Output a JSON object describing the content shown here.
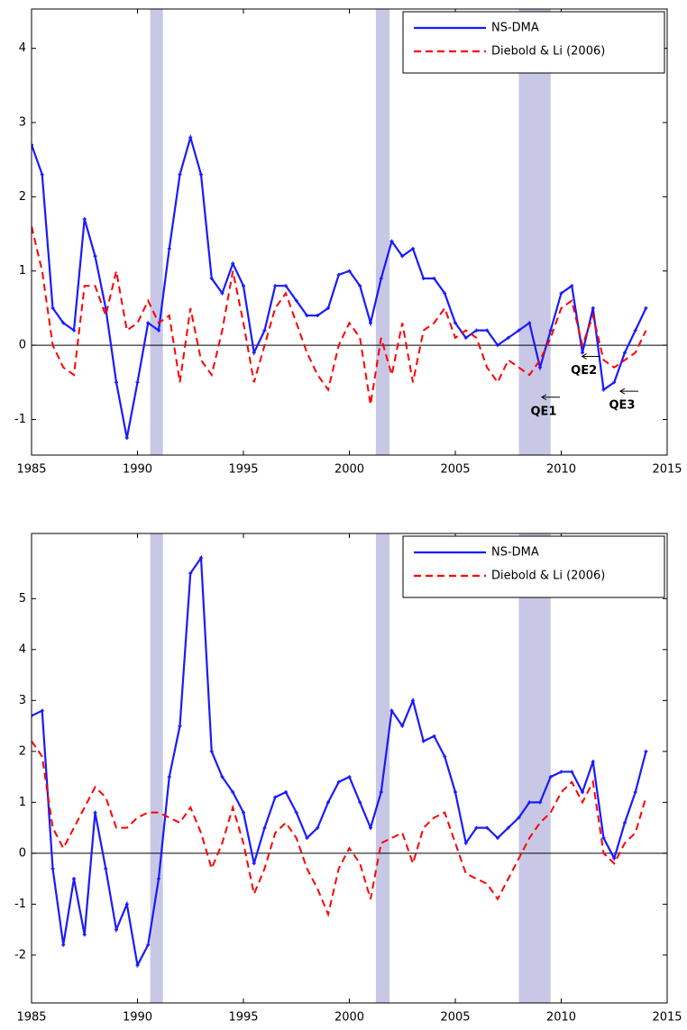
{
  "chart_data": [
    {
      "type": "line",
      "xlim": [
        1985,
        2015
      ],
      "xticks": [
        1985,
        1990,
        1995,
        2000,
        2005,
        2010,
        2015
      ],
      "ylim": [
        -1.48,
        4.53
      ],
      "yticks": [
        -1,
        0,
        1,
        2,
        3,
        4
      ],
      "legend": "northeast",
      "zero_line": true,
      "shaded_periods": [
        [
          1990.6,
          1991.2
        ],
        [
          2001.25,
          2001.9
        ],
        [
          2008.0,
          2009.5
        ]
      ],
      "shade_color": "#c8c8e6",
      "x": [
        1985.0,
        1985.5,
        1986.0,
        1986.5,
        1987.0,
        1987.5,
        1988.0,
        1988.5,
        1989.0,
        1989.5,
        1990.0,
        1990.5,
        1991.0,
        1991.5,
        1992.0,
        1992.5,
        1993.0,
        1993.5,
        1994.0,
        1994.5,
        1995.0,
        1995.5,
        1996.0,
        1996.5,
        1997.0,
        1997.5,
        1998.0,
        1998.5,
        1999.0,
        1999.5,
        2000.0,
        2000.5,
        2001.0,
        2001.5,
        2002.0,
        2002.5,
        2003.0,
        2003.5,
        2004.0,
        2004.5,
        2005.0,
        2005.5,
        2006.0,
        2006.5,
        2007.0,
        2007.5,
        2008.0,
        2008.5,
        2009.0,
        2009.5,
        2010.0,
        2010.5,
        2011.0,
        2011.5,
        2012.0,
        2012.5,
        2013.0,
        2013.5,
        2014.0
      ],
      "series": [
        {
          "name": "NS-DMA",
          "color": "#1a1aff",
          "style": "solid",
          "values": [
            2.7,
            2.3,
            0.5,
            0.3,
            0.2,
            1.7,
            1.2,
            0.5,
            -0.5,
            -1.25,
            -0.5,
            0.3,
            0.2,
            1.3,
            2.3,
            2.8,
            2.3,
            0.9,
            0.7,
            1.1,
            0.8,
            -0.1,
            0.2,
            0.8,
            0.8,
            0.6,
            0.4,
            0.4,
            0.5,
            0.95,
            1.0,
            0.8,
            0.3,
            0.9,
            1.4,
            1.2,
            1.3,
            0.9,
            0.9,
            0.7,
            0.3,
            0.1,
            0.2,
            0.2,
            0.0,
            0.1,
            0.2,
            0.3,
            -0.3,
            0.2,
            0.7,
            0.8,
            -0.1,
            0.5,
            -0.6,
            -0.5,
            -0.1,
            0.2,
            0.5
          ]
        },
        {
          "name": "Diebold & Li (2006)",
          "color": "#ff0000",
          "style": "dashed",
          "values": [
            1.6,
            1.0,
            0.0,
            -0.3,
            -0.4,
            0.8,
            0.8,
            0.4,
            1.0,
            0.2,
            0.3,
            0.6,
            0.3,
            0.4,
            -0.5,
            0.5,
            -0.2,
            -0.4,
            0.2,
            1.0,
            0.3,
            -0.5,
            0.0,
            0.5,
            0.7,
            0.3,
            -0.1,
            -0.4,
            -0.6,
            0.0,
            0.3,
            0.1,
            -0.8,
            0.1,
            -0.4,
            0.3,
            -0.5,
            0.2,
            0.3,
            0.5,
            0.1,
            0.2,
            0.1,
            -0.3,
            -0.5,
            -0.2,
            -0.3,
            -0.4,
            -0.2,
            0.1,
            0.5,
            0.6,
            0.0,
            0.4,
            -0.2,
            -0.3,
            -0.2,
            -0.1,
            0.2
          ]
        }
      ],
      "annotations": [
        {
          "text": "QE1",
          "x": 2009.0,
          "y": -0.7
        },
        {
          "text": "QE2",
          "x": 2010.9,
          "y": -0.15
        },
        {
          "text": "QE3",
          "x": 2012.7,
          "y": -0.62
        }
      ]
    },
    {
      "type": "line",
      "xlim": [
        1985,
        2015
      ],
      "xticks": [
        1985,
        1990,
        1995,
        2000,
        2005,
        2010,
        2015
      ],
      "ylim": [
        -2.94,
        6.28
      ],
      "yticks": [
        -2,
        -1,
        0,
        1,
        2,
        3,
        4,
        5
      ],
      "legend": "northeast",
      "zero_line": true,
      "shaded_periods": [
        [
          1990.6,
          1991.2
        ],
        [
          2001.25,
          2001.9
        ],
        [
          2008.0,
          2009.5
        ]
      ],
      "shade_color": "#c8c8e6",
      "x": [
        1985.0,
        1985.5,
        1986.0,
        1986.5,
        1987.0,
        1987.5,
        1988.0,
        1988.5,
        1989.0,
        1989.5,
        1990.0,
        1990.5,
        1991.0,
        1991.5,
        1992.0,
        1992.5,
        1993.0,
        1993.5,
        1994.0,
        1994.5,
        1995.0,
        1995.5,
        1996.0,
        1996.5,
        1997.0,
        1997.5,
        1998.0,
        1998.5,
        1999.0,
        1999.5,
        2000.0,
        2000.5,
        2001.0,
        2001.5,
        2002.0,
        2002.5,
        2003.0,
        2003.5,
        2004.0,
        2004.5,
        2005.0,
        2005.5,
        2006.0,
        2006.5,
        2007.0,
        2007.5,
        2008.0,
        2008.5,
        2009.0,
        2009.5,
        2010.0,
        2010.5,
        2011.0,
        2011.5,
        2012.0,
        2012.5,
        2013.0,
        2013.5,
        2014.0
      ],
      "series": [
        {
          "name": "NS-DMA",
          "color": "#1a1aff",
          "style": "solid",
          "values": [
            2.7,
            2.8,
            -0.3,
            -1.8,
            -0.5,
            -1.6,
            0.8,
            -0.3,
            -1.5,
            -1.0,
            -2.2,
            -1.8,
            -0.5,
            1.5,
            2.5,
            5.5,
            5.8,
            2.0,
            1.5,
            1.2,
            0.8,
            -0.2,
            0.5,
            1.1,
            1.2,
            0.8,
            0.3,
            0.5,
            1.0,
            1.4,
            1.5,
            1.0,
            0.5,
            1.2,
            2.8,
            2.5,
            3.0,
            2.2,
            2.3,
            1.9,
            1.2,
            0.2,
            0.5,
            0.5,
            0.3,
            0.5,
            0.7,
            1.0,
            1.0,
            1.5,
            1.6,
            1.6,
            1.2,
            1.8,
            0.3,
            -0.1,
            0.6,
            1.2,
            2.0
          ]
        },
        {
          "name": "Diebold & Li (2006)",
          "color": "#ff0000",
          "style": "dashed",
          "values": [
            2.2,
            1.9,
            0.5,
            0.1,
            0.5,
            0.9,
            1.3,
            1.1,
            0.5,
            0.5,
            0.7,
            0.8,
            0.8,
            0.7,
            0.6,
            0.9,
            0.4,
            -0.3,
            0.2,
            0.9,
            0.2,
            -0.8,
            -0.3,
            0.4,
            0.6,
            0.3,
            -0.3,
            -0.7,
            -1.2,
            -0.3,
            0.1,
            -0.2,
            -0.9,
            0.2,
            0.3,
            0.4,
            -0.2,
            0.5,
            0.7,
            0.8,
            0.2,
            -0.4,
            -0.5,
            -0.6,
            -0.9,
            -0.5,
            -0.1,
            0.3,
            0.6,
            0.8,
            1.2,
            1.4,
            1.0,
            1.4,
            0.0,
            -0.2,
            0.2,
            0.4,
            1.1
          ]
        }
      ]
    }
  ]
}
